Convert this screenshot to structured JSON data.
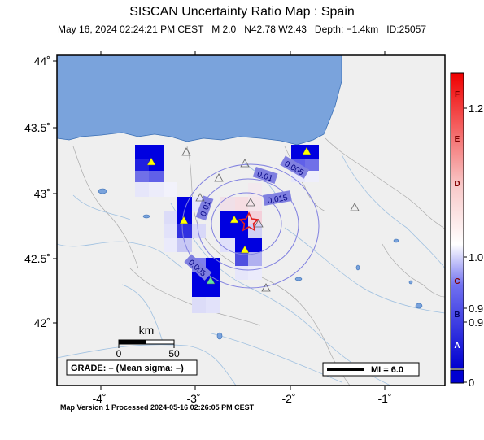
{
  "header": {
    "title": "SISCAN Uncertainty Ratio Map : Spain",
    "subtitle": "May 16, 2024 02:24:21 PM CEST   M 2.0   N42.78 W2.43   Depth: −1.4km   ID:25057"
  },
  "map": {
    "lon_ticks": [
      "-4˚",
      "-3˚",
      "-2˚",
      "-1˚"
    ],
    "lat_ticks": [
      "44˚",
      "43.5˚",
      "43˚",
      "42.5˚",
      "42˚"
    ],
    "contour_labels": [
      "0.01",
      "0.005",
      "0.015",
      "0.01",
      "0.005"
    ],
    "scale_bar": {
      "unit": "km",
      "start": "0",
      "end": "50"
    },
    "grade_box": "GRADE: – (Mean sigma: –)",
    "mi_legend": "MI = 6.0",
    "colors": {
      "sea": "#7aa3dc",
      "land": "#efefef",
      "grid_blue": "#0000e0",
      "epicenter": "#e02020"
    }
  },
  "colorbar": {
    "letters": [
      "F",
      "E",
      "D",
      "C",
      "B",
      "A"
    ],
    "values": [
      "1.2",
      "1.0",
      "0.9",
      "0.9",
      "0"
    ]
  },
  "footer": "Map Version 1 Processed 2024-05-16 02:26:05 PM CEST"
}
